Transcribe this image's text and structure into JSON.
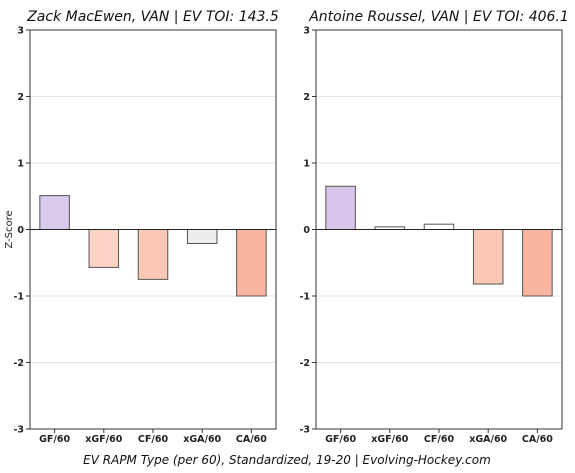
{
  "chart_data": [
    {
      "type": "bar",
      "title": "Zack MacEwen, VAN  |  EV TOI: 143.5",
      "ylabel": "Z-Score",
      "categories": [
        "GF/60",
        "xGF/60",
        "CF/60",
        "xGA/60",
        "CA/60"
      ],
      "values": [
        0.51,
        -0.57,
        -0.75,
        -0.21,
        -1.0
      ],
      "colors": [
        "#d9c9ea",
        "#fdd3c6",
        "#fcc7b5",
        "#efedeb",
        "#fbb4a0"
      ],
      "ylim": [
        -3,
        3
      ],
      "yticks": [
        "-3",
        "-2",
        "-1",
        "0",
        "1",
        "2",
        "3"
      ],
      "grid": true
    },
    {
      "type": "bar",
      "title": "Antoine Roussel, VAN  |  EV TOI: 406.1",
      "ylabel": "",
      "categories": [
        "GF/60",
        "xGF/60",
        "CF/60",
        "xGA/60",
        "CA/60"
      ],
      "values": [
        0.65,
        0.04,
        0.08,
        -0.82,
        -1.0
      ],
      "colors": [
        "#d7c5ea",
        "#ffffff",
        "#ffffff",
        "#fcc8b6",
        "#fbb4a0"
      ],
      "ylim": [
        -3,
        3
      ],
      "yticks": [
        "-3",
        "-2",
        "-1",
        "0",
        "1",
        "2",
        "3"
      ],
      "grid": true
    }
  ],
  "footer": "EV RAPM Type (per 60), Standardized, 19-20    |    Evolving-Hockey.com"
}
